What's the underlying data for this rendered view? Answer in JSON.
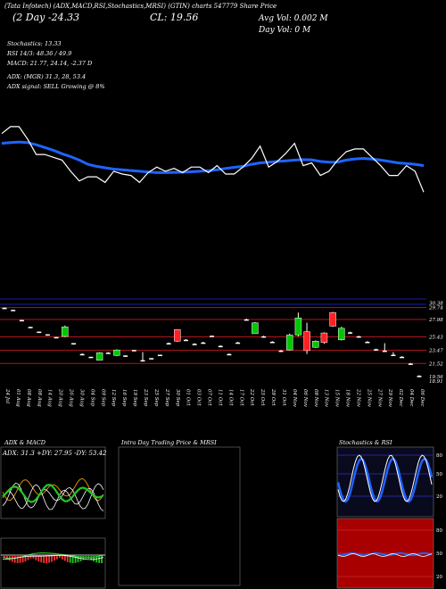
{
  "header": {
    "ticker_line": "(Tata Infotech) (ADX,MACD,RSI,Stochastics,MRSI) (GTIN) charts 547779 Share Price",
    "price_line": "(2 Day -24.33",
    "close_line": "CL: 19.56",
    "avg_vol": "Avg Vol: 0.002  M",
    "day_vol": "Day Vol: 0  M"
  },
  "indicators": {
    "stoch": "Stochastics: 13.33",
    "rsi": "RSI 14/3: 48.36 / 49.9",
    "macd": "MACD: 21.77, 24.14, -2.37 D",
    "adx": "ADX: (MGR) 31.3, 28, 53.4",
    "signal": "ADX  signal: SELL  Growing @ 8%"
  },
  "panels": {
    "adx_title": "ADX  & MACD",
    "adx_values": "ADX: 31.3  +DY: 27.95  -DY: 53.42",
    "intraday_title": "Intra  Day Trading Price  & MRSI",
    "stoch_title": "Stochastics & RSI"
  },
  "colors": {
    "bg": "#000000",
    "ma": "#1e64ff",
    "price": "#ffffff",
    "up": "#00c800",
    "down": "#ff2020",
    "level": "#b4141e",
    "blue_grid": "#1a1aaa",
    "rsi_bg": "#a80000"
  },
  "chart_data": [
    {
      "type": "line",
      "title": "Price and moving average",
      "x": [
        0,
        1,
        2,
        3,
        4,
        5,
        6,
        7,
        8,
        9,
        10,
        11,
        12,
        13,
        14,
        15,
        16,
        17,
        18,
        19,
        20,
        21,
        22,
        23,
        24,
        25,
        26,
        27,
        28,
        29,
        30,
        31,
        32,
        33,
        34,
        35,
        36,
        37,
        38,
        39,
        40,
        41,
        42,
        43,
        44,
        45,
        46,
        47,
        48,
        49
      ],
      "series": [
        {
          "values": [
            27.1,
            27.6,
            27.6,
            26.7,
            25.6,
            25.6,
            25.4,
            25.2,
            24.4,
            23.7,
            24.0,
            24.0,
            23.6,
            24.4,
            24.2,
            24.1,
            23.6,
            24.3,
            24.7,
            24.4,
            24.6,
            24.3,
            24.7,
            24.7,
            24.3,
            24.8,
            24.2,
            24.2,
            24.7,
            25.3,
            26.2,
            24.7,
            25.1,
            25.7,
            26.4,
            24.8,
            25.0,
            24.1,
            24.4,
            25.2,
            25.8,
            26.0,
            26.0,
            25.4,
            24.8,
            24.1,
            24.1,
            24.8,
            24.4,
            22.9
          ]
        },
        {
          "values": [
            26.4,
            26.45,
            26.5,
            26.45,
            26.3,
            26.1,
            25.9,
            25.65,
            25.45,
            25.2,
            24.9,
            24.75,
            24.65,
            24.55,
            24.5,
            24.45,
            24.4,
            24.35,
            24.3,
            24.3,
            24.32,
            24.33,
            24.36,
            24.4,
            24.44,
            24.5,
            24.6,
            24.68,
            24.75,
            24.9,
            25.0,
            25.05,
            25.1,
            25.15,
            25.2,
            25.23,
            25.22,
            25.1,
            25.05,
            25.06,
            25.2,
            25.28,
            25.32,
            25.27,
            25.2,
            25.1,
            25.0,
            24.95,
            24.9,
            24.8
          ]
        }
      ]
    },
    {
      "type": "bar",
      "title": "Candles",
      "y_ticks": [
        30.38,
        29.74,
        27.98,
        25.43,
        23.47,
        21.52,
        19.56,
        18.91
      ],
      "candles": [
        {
          "o": 29.7,
          "h": 29.74,
          "l": 29.6,
          "c": 29.6
        },
        {
          "o": 29.4,
          "h": 29.4,
          "l": 29.3,
          "c": 29.3
        },
        {
          "o": 27.9,
          "h": 27.9,
          "l": 27.8,
          "c": 27.8
        },
        {
          "o": 26.9,
          "h": 26.9,
          "l": 26.8,
          "c": 26.8
        },
        {
          "o": 26.2,
          "h": 26.2,
          "l": 26.1,
          "c": 26.1
        },
        {
          "o": 25.7,
          "h": 25.8,
          "l": 25.6,
          "c": 25.8
        },
        {
          "o": 25.4,
          "h": 25.4,
          "l": 25.3,
          "c": 25.3
        },
        {
          "o": 25.5,
          "h": 27.1,
          "l": 25.4,
          "c": 26.9
        },
        {
          "o": 24.5,
          "h": 24.5,
          "l": 24.3,
          "c": 24.4
        },
        {
          "o": 22.9,
          "h": 23.0,
          "l": 22.8,
          "c": 22.9
        },
        {
          "o": 22.5,
          "h": 22.5,
          "l": 22.4,
          "c": 22.4
        },
        {
          "o": 22.0,
          "h": 23.2,
          "l": 22.0,
          "c": 23.1
        },
        {
          "o": 23.1,
          "h": 23.2,
          "l": 23.0,
          "c": 23.1
        },
        {
          "o": 22.7,
          "h": 23.6,
          "l": 22.6,
          "c": 23.5
        },
        {
          "o": 22.7,
          "h": 22.7,
          "l": 22.5,
          "c": 22.6
        },
        {
          "o": 23.5,
          "h": 23.5,
          "l": 23.4,
          "c": 23.4
        },
        {
          "o": 22.0,
          "h": 23.2,
          "l": 21.9,
          "c": 22.0
        },
        {
          "o": 22.3,
          "h": 22.3,
          "l": 22.2,
          "c": 22.2
        },
        {
          "o": 22.8,
          "h": 22.8,
          "l": 22.7,
          "c": 22.7
        },
        {
          "o": 24.5,
          "h": 24.6,
          "l": 24.4,
          "c": 24.5
        },
        {
          "o": 26.5,
          "h": 26.5,
          "l": 24.7,
          "c": 24.8
        },
        {
          "o": 25.0,
          "h": 25.1,
          "l": 24.9,
          "c": 25.0
        },
        {
          "o": 24.4,
          "h": 24.5,
          "l": 24.3,
          "c": 24.4
        },
        {
          "o": 24.6,
          "h": 24.7,
          "l": 24.5,
          "c": 24.6
        },
        {
          "o": 25.6,
          "h": 25.6,
          "l": 25.5,
          "c": 25.5
        },
        {
          "o": 24.1,
          "h": 24.2,
          "l": 24.0,
          "c": 24.1
        },
        {
          "o": 22.9,
          "h": 23.0,
          "l": 22.8,
          "c": 22.9
        },
        {
          "o": 24.6,
          "h": 24.7,
          "l": 24.5,
          "c": 24.6
        },
        {
          "o": 28.0,
          "h": 28.1,
          "l": 27.9,
          "c": 28.0
        },
        {
          "o": 25.9,
          "h": 27.6,
          "l": 25.9,
          "c": 27.5
        },
        {
          "o": 25.5,
          "h": 25.6,
          "l": 25.4,
          "c": 25.5
        },
        {
          "o": 24.7,
          "h": 24.8,
          "l": 24.6,
          "c": 24.7
        },
        {
          "o": 23.4,
          "h": 23.5,
          "l": 23.3,
          "c": 23.4
        },
        {
          "o": 23.5,
          "h": 25.9,
          "l": 23.4,
          "c": 25.7
        },
        {
          "o": 25.7,
          "h": 29.0,
          "l": 25.5,
          "c": 28.2
        },
        {
          "o": 26.2,
          "h": 27.5,
          "l": 22.9,
          "c": 23.4
        },
        {
          "o": 23.9,
          "h": 24.9,
          "l": 23.8,
          "c": 24.8
        },
        {
          "o": 26.0,
          "h": 26.1,
          "l": 24.4,
          "c": 24.6
        },
        {
          "o": 29.0,
          "h": 29.1,
          "l": 26.9,
          "c": 27.0
        },
        {
          "o": 25.0,
          "h": 26.9,
          "l": 24.9,
          "c": 26.7
        },
        {
          "o": 26.1,
          "h": 26.2,
          "l": 26.0,
          "c": 26.1
        },
        {
          "o": 25.5,
          "h": 25.6,
          "l": 25.4,
          "c": 25.5
        },
        {
          "o": 24.7,
          "h": 24.8,
          "l": 24.6,
          "c": 24.7
        },
        {
          "o": 23.6,
          "h": 23.7,
          "l": 23.5,
          "c": 23.6
        },
        {
          "o": 23.4,
          "h": 24.5,
          "l": 23.3,
          "c": 23.4
        },
        {
          "o": 22.8,
          "h": 23.2,
          "l": 22.7,
          "c": 22.8
        },
        {
          "o": 22.5,
          "h": 22.6,
          "l": 22.4,
          "c": 22.5
        },
        {
          "o": 21.5,
          "h": 21.6,
          "l": 21.4,
          "c": 21.5
        },
        {
          "o": 19.7,
          "h": 19.8,
          "l": 19.5,
          "c": 19.56
        }
      ]
    }
  ],
  "x_labels": [
    "24 Jul",
    "01 Aug",
    "08 Aug",
    "08 Aug",
    "14 Aug",
    "20 Aug",
    "26 Aug",
    "30 Aug",
    "04 Sep",
    "09 Sep",
    "12 Sep",
    "16 Sep",
    "19 Sep",
    "23 Sep",
    "25 Sep",
    "27 Sep",
    "30 Sep",
    "01 Oct",
    "03 Oct",
    "07 Oct",
    "11 Oct",
    "14 Oct",
    "17 Oct",
    "22 Oct",
    "25 Oct",
    "28 Oct",
    "31 Oct",
    "04 Nov",
    "06 Nov",
    "08 Nov",
    "13 Nov",
    "15 Nov",
    "18 Nov",
    "22 Nov",
    "25 Nov",
    "27 Nov",
    "29 Nov",
    "02 Dec",
    "04 Dec",
    "06 Dec"
  ]
}
